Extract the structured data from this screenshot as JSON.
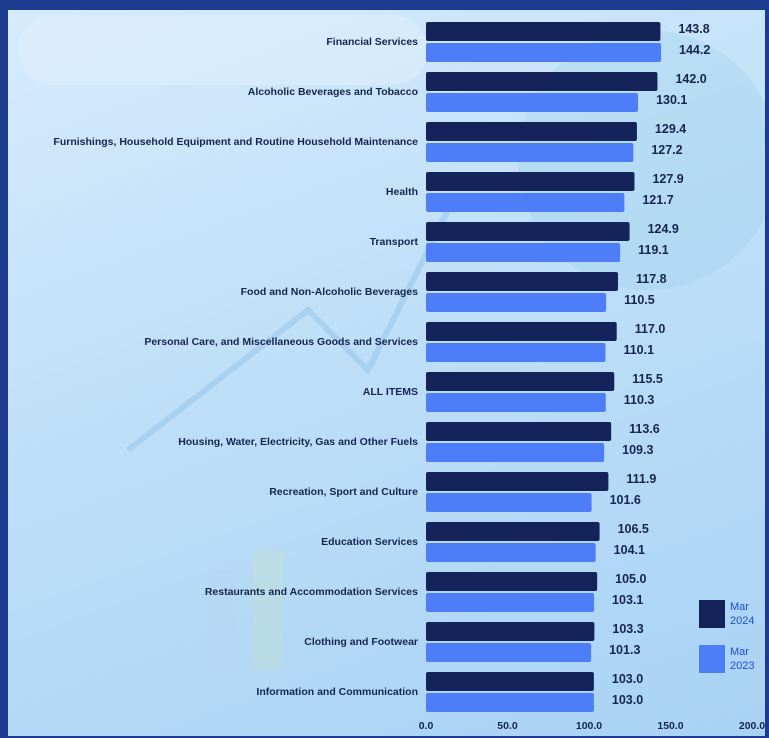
{
  "chart_data": {
    "type": "bar",
    "orientation": "horizontal",
    "categories": [
      "Financial Services",
      "Alcoholic Beverages and Tobacco",
      "Furnishings, Household Equipment and Routine Household Maintenance",
      "Health",
      "Transport",
      "Food and Non-Alcoholic Beverages",
      "Personal Care, and Miscellaneous Goods and Services",
      "ALL ITEMS",
      "Housing, Water, Electricity, Gas and Other Fuels",
      "Recreation, Sport and Culture",
      "Education Services",
      "Restaurants and Accommodation Services",
      "Clothing and Footwear",
      "Information and Communication"
    ],
    "series": [
      {
        "name": "Mar 2024",
        "color": "#14245a",
        "values": [
          143.8,
          142.0,
          129.4,
          127.9,
          124.9,
          117.8,
          117.0,
          115.5,
          113.6,
          111.9,
          106.5,
          105.0,
          103.3,
          103.0
        ],
        "value_labels": [
          "143.8",
          "142.0",
          "129.4",
          "127.9",
          "124.9",
          "117.8",
          "117.0",
          "115.5",
          "113.6",
          "111.9",
          "106.5",
          "105.0",
          "103.3",
          "103.0"
        ]
      },
      {
        "name": "Mar 2023",
        "color": "#4d7ef7",
        "values": [
          144.2,
          130.1,
          127.2,
          121.7,
          119.1,
          110.5,
          110.1,
          110.3,
          109.3,
          101.6,
          104.1,
          103.1,
          101.3,
          103.0
        ],
        "value_labels": [
          "144.2",
          "130.1",
          "127.2",
          "121.7",
          "119.1",
          "110.5",
          "110.1",
          "110.3",
          "109.3",
          "101.6",
          "104.1",
          "103.1",
          "101.3",
          "103.0"
        ]
      }
    ],
    "xlim": [
      0,
      200
    ],
    "xticks": [
      {
        "value": 0,
        "label": "0.0"
      },
      {
        "value": 50,
        "label": "50.0"
      },
      {
        "value": 100,
        "label": "100.0"
      },
      {
        "value": 150,
        "label": "150.0"
      },
      {
        "value": 200,
        "label": "200.0"
      }
    ],
    "legend": "bottom-right"
  }
}
